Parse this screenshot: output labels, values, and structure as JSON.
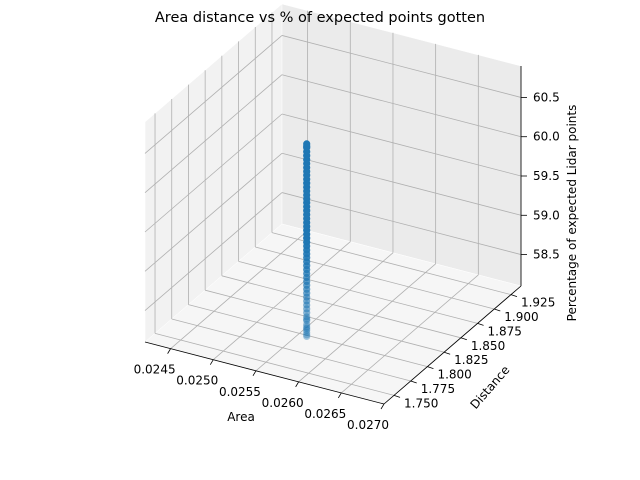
{
  "chart_data": {
    "type": "scatter",
    "projection": "3d",
    "title": "Area distance vs % of expected points gotten",
    "xlabel": "Area",
    "ylabel": "Distance",
    "zlabel": "Percentage of expected Lidar points",
    "xlim": [
      0.0242,
      0.027
    ],
    "ylim": [
      1.735,
      1.94
    ],
    "zlim": [
      58.1,
      60.9
    ],
    "xticks": [
      "0.0245",
      "0.0250",
      "0.0255",
      "0.0260",
      "0.0265",
      "0.0270"
    ],
    "yticks": [
      "1.750",
      "1.775",
      "1.800",
      "1.825",
      "1.850",
      "1.875",
      "1.900",
      "1.925"
    ],
    "zticks": [
      "58.5",
      "59.0",
      "59.5",
      "60.0",
      "60.5"
    ],
    "grid": true,
    "marker_color": "#1f77b4",
    "series": [
      {
        "x": [
          0.02568,
          0.02568,
          0.02568,
          0.02568,
          0.02568,
          0.02568,
          0.02568,
          0.02568,
          0.02568,
          0.02568,
          0.02568,
          0.02568,
          0.02568,
          0.02568,
          0.02568,
          0.02568,
          0.02568,
          0.02568,
          0.02568,
          0.02568,
          0.02568,
          0.02568,
          0.02568,
          0.02568,
          0.02568,
          0.02568,
          0.02568,
          0.02568,
          0.02568,
          0.02568,
          0.02568,
          0.02568,
          0.02568,
          0.02568,
          0.02568,
          0.02568,
          0.02568,
          0.02568,
          0.02568,
          0.02568,
          0.02568,
          0.02568,
          0.02568,
          0.02568,
          0.02568,
          0.02568,
          0.02568,
          0.02568,
          0.02568,
          0.02568,
          0.02568,
          0.02568,
          0.02568,
          0.02568,
          0.02568
        ],
        "y": [
          1.788,
          1.788,
          1.788,
          1.788,
          1.788,
          1.788,
          1.788,
          1.788,
          1.788,
          1.788,
          1.788,
          1.788,
          1.788,
          1.788,
          1.788,
          1.788,
          1.788,
          1.788,
          1.788,
          1.788,
          1.788,
          1.788,
          1.788,
          1.788,
          1.788,
          1.788,
          1.788,
          1.788,
          1.788,
          1.788,
          1.788,
          1.788,
          1.788,
          1.788,
          1.788,
          1.788,
          1.788,
          1.788,
          1.788,
          1.788,
          1.788,
          1.788,
          1.788,
          1.788,
          1.788,
          1.788,
          1.788,
          1.788,
          1.788,
          1.788,
          1.788,
          1.788,
          1.788,
          1.788,
          1.788
        ],
        "z": [
          58.2,
          58.25,
          58.3,
          58.35,
          58.4,
          58.45,
          58.5,
          58.55,
          58.6,
          58.65,
          58.7,
          58.75,
          58.8,
          58.85,
          58.9,
          58.95,
          59.0,
          59.05,
          59.1,
          59.15,
          59.2,
          59.25,
          59.3,
          59.35,
          59.4,
          59.45,
          59.5,
          59.55,
          59.6,
          59.65,
          59.7,
          59.75,
          59.8,
          59.85,
          59.9,
          59.95,
          60.0,
          60.05,
          60.1,
          60.15,
          60.2,
          60.25,
          60.3,
          60.35,
          60.4,
          60.45,
          60.5,
          60.55,
          60.6,
          58.22,
          58.32,
          58.42,
          60.62,
          60.65,
          58.28
        ]
      }
    ]
  }
}
